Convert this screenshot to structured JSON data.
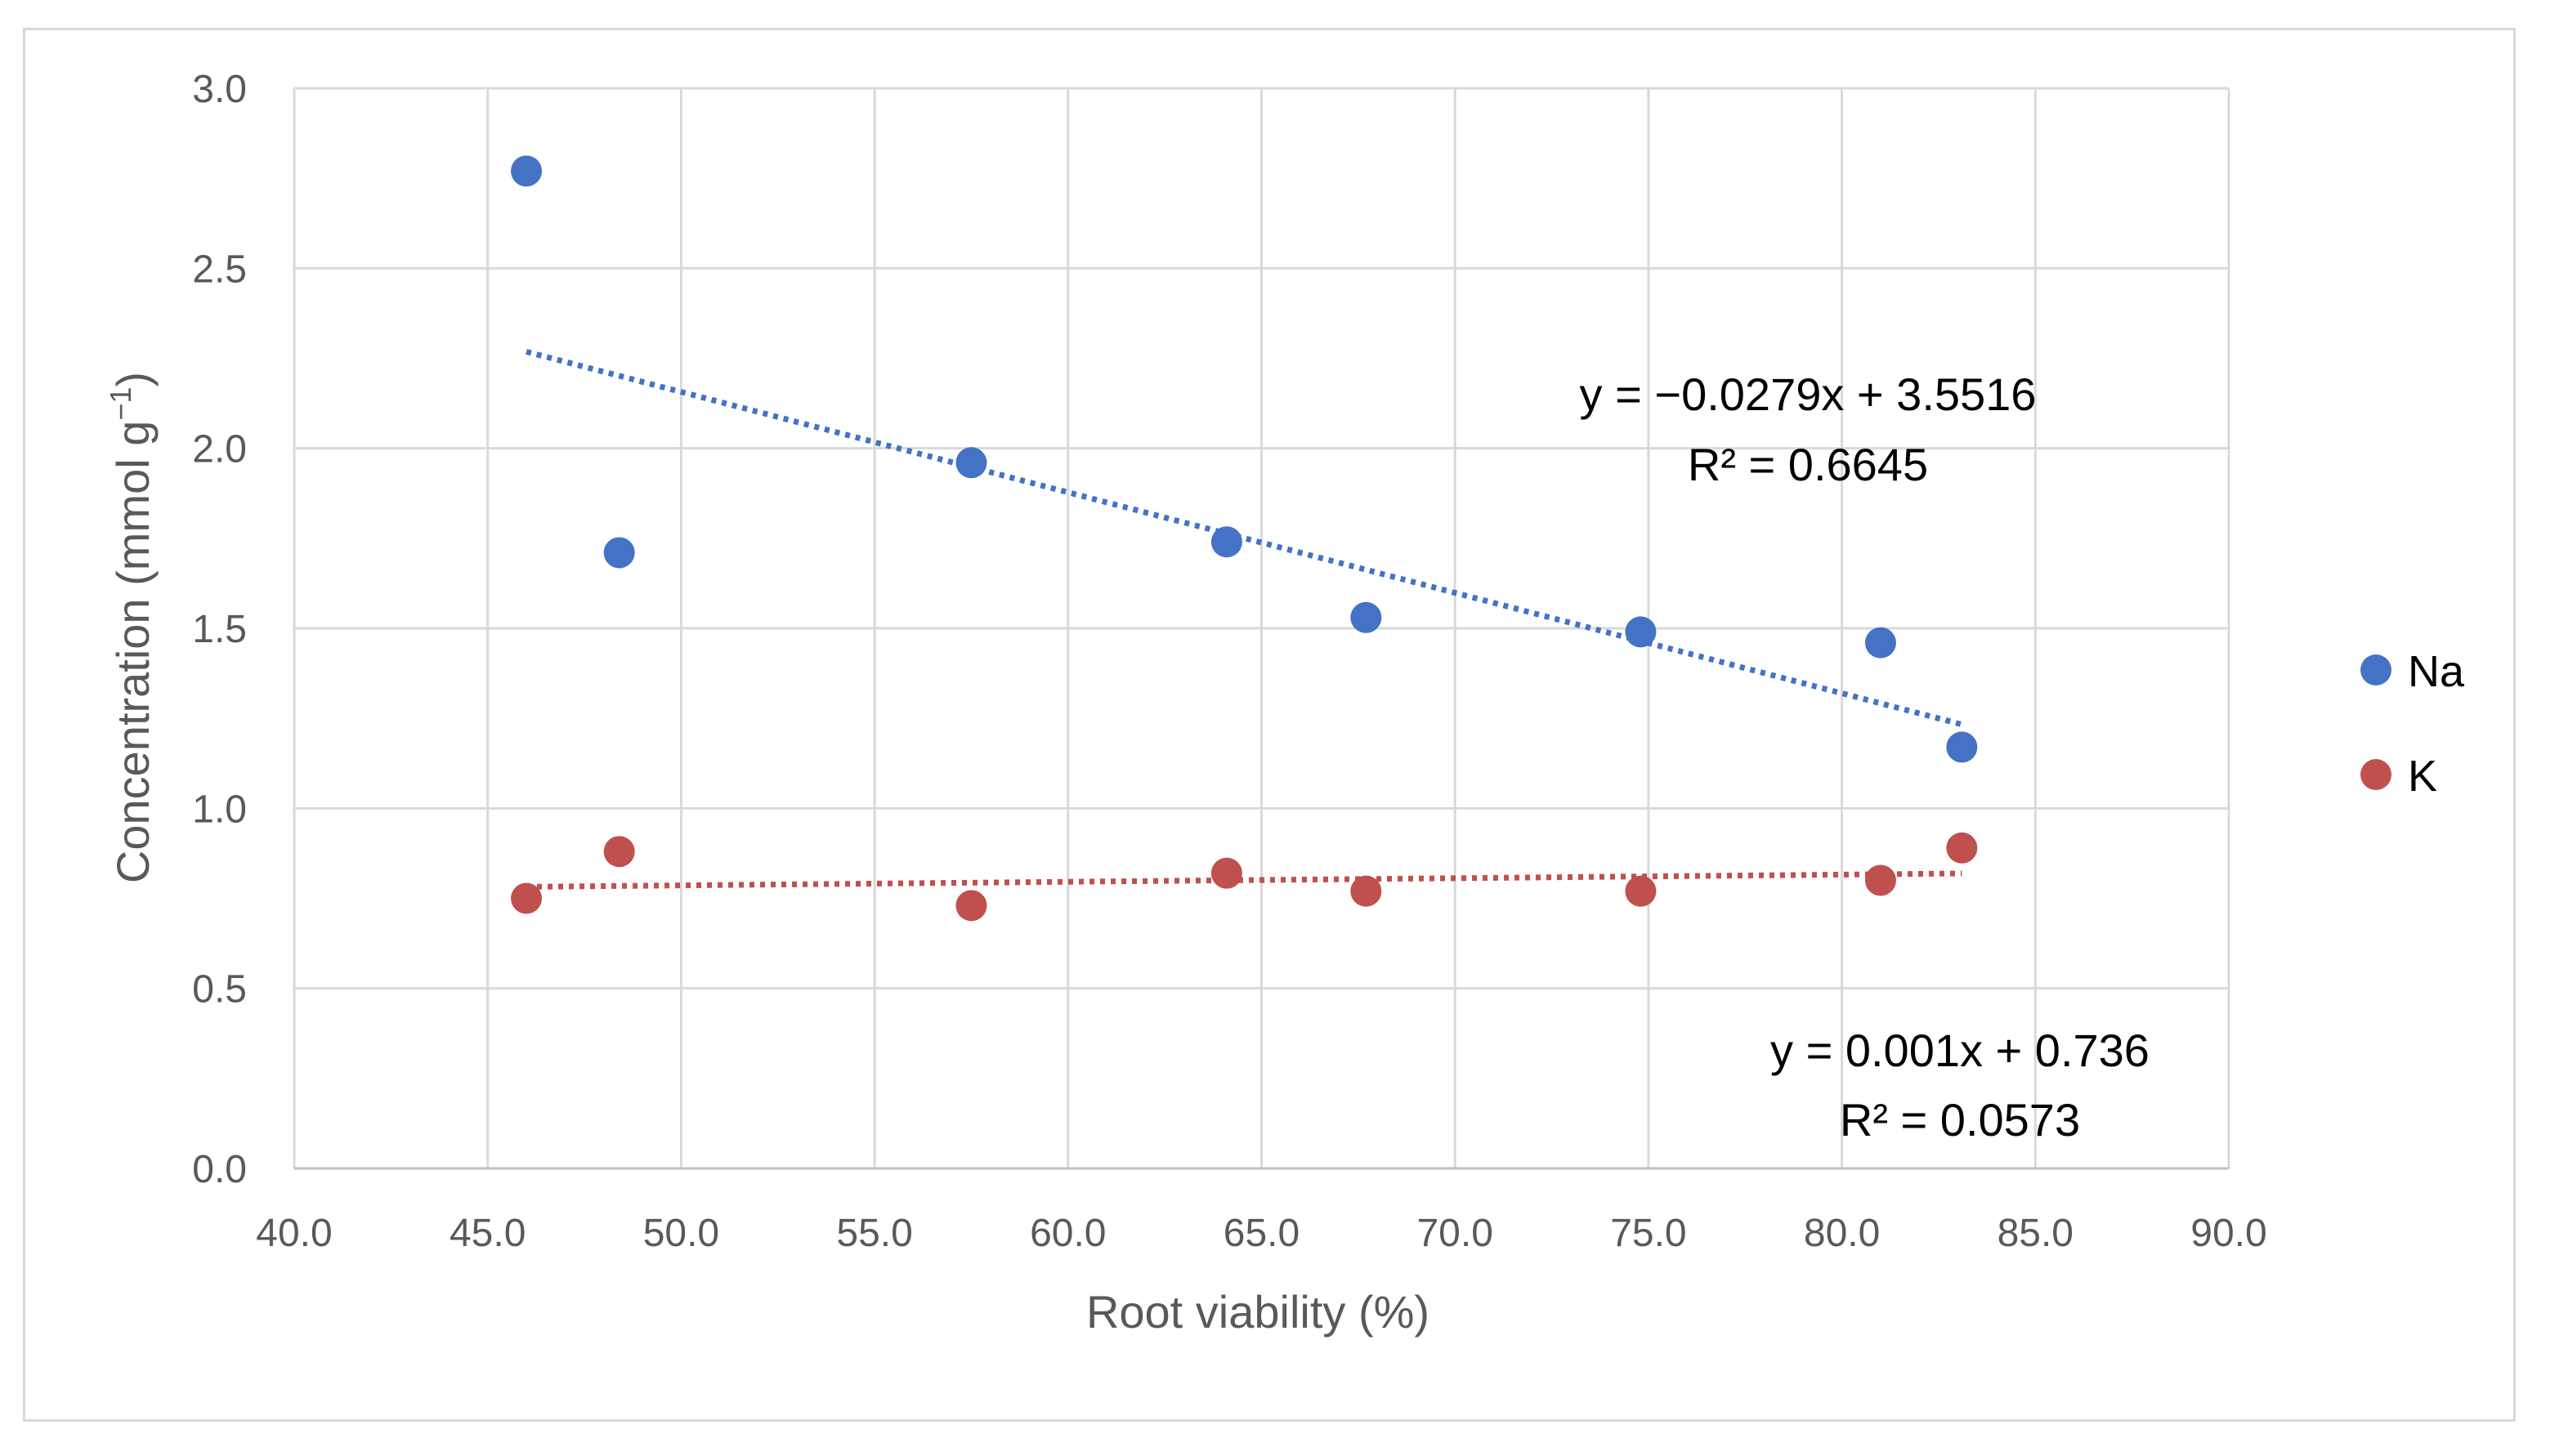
{
  "chart_data": {
    "type": "scatter",
    "xlabel": "Root viability (%)",
    "ylabel_main": "Concentration (mmol g",
    "ylabel_sup": "−1",
    "ylabel_close": ")",
    "xlim": [
      40,
      90
    ],
    "ylim": [
      0,
      3
    ],
    "xticks": [
      40,
      45,
      50,
      55,
      60,
      65,
      70,
      75,
      80,
      85,
      90
    ],
    "yticks": [
      0,
      0.5,
      1,
      1.5,
      2,
      2.5,
      3
    ],
    "xtick_labels": [
      "40.0",
      "45.0",
      "50.0",
      "55.0",
      "60.0",
      "65.0",
      "70.0",
      "75.0",
      "80.0",
      "85.0",
      "90.0"
    ],
    "ytick_labels": [
      "0.0",
      "0.5",
      "1.0",
      "1.5",
      "2.0",
      "2.5",
      "3.0"
    ],
    "grid": true,
    "legend_position": "right",
    "series": [
      {
        "name": "Na",
        "color": "#4472C4",
        "x": [
          46.0,
          48.4,
          57.5,
          64.1,
          67.7,
          74.8,
          81.0,
          83.1
        ],
        "y": [
          2.77,
          1.71,
          1.96,
          1.74,
          1.53,
          1.49,
          1.46,
          1.17
        ],
        "trendline": {
          "slope": -0.0279,
          "intercept": 3.5516,
          "x_range": [
            46.0,
            83.1
          ],
          "equation": "y = −0.0279x + 3.5516",
          "r2": "R² = 0.6645"
        }
      },
      {
        "name": "K",
        "color": "#C0504D",
        "x": [
          46.0,
          48.4,
          57.5,
          64.1,
          67.7,
          74.8,
          81.0,
          83.1
        ],
        "y": [
          0.75,
          0.88,
          0.73,
          0.82,
          0.77,
          0.77,
          0.8,
          0.89
        ],
        "trendline": {
          "slope": 0.001,
          "intercept": 0.736,
          "x_range": [
            46.0,
            83.1
          ],
          "equation": "y = 0.001x + 0.736",
          "r2": "R² = 0.0573"
        }
      }
    ]
  }
}
